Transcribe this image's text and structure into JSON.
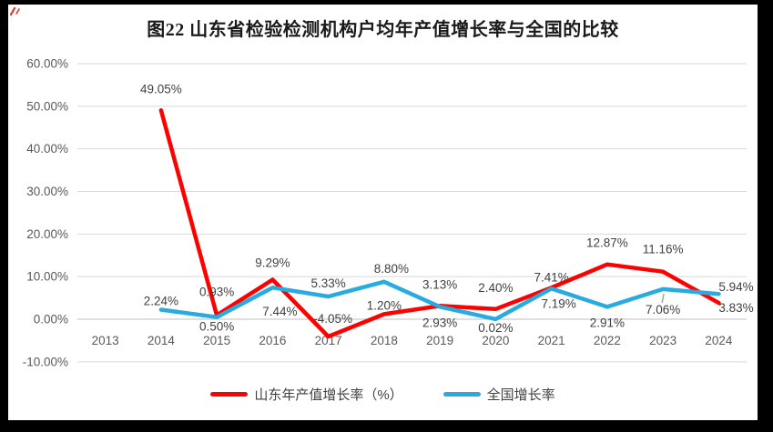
{
  "title": "图22 山东省检验检测机构户均年产值增长率与全国的比较",
  "legend": {
    "items": [
      {
        "label": "山东年产值增长率（%）",
        "color": "#FF0000"
      },
      {
        "label": "全国增长率",
        "color": "#29ABE2"
      }
    ]
  },
  "chart_data": {
    "type": "line",
    "title": "图22 山东省检验检测机构户均年产值增长率与全国的比较",
    "categories": [
      "2013",
      "2014",
      "2015",
      "2016",
      "2017",
      "2018",
      "2019",
      "2020",
      "2021",
      "2022",
      "2023",
      "2024"
    ],
    "series": [
      {
        "name": "山东年产值增长率（%）",
        "color": "#FF0000",
        "values": [
          null,
          49.05,
          0.93,
          9.29,
          -4.05,
          1.2,
          3.13,
          2.4,
          7.41,
          12.87,
          11.16,
          3.83
        ],
        "labels": [
          null,
          "49.05%",
          "0.93%",
          "9.29%",
          "-4.05%",
          "1.20%",
          "3.13%",
          "2.40%",
          "7.41%",
          "12.87%",
          "11.16%",
          "3.83%"
        ],
        "label_offsets": [
          null,
          [
            0,
            -19,
            "middle"
          ],
          [
            0,
            -21,
            "middle"
          ],
          [
            0,
            -14,
            "middle"
          ],
          [
            5,
            -15,
            "middle"
          ],
          [
            0,
            -5,
            "middle"
          ],
          [
            0,
            -19,
            "middle"
          ],
          [
            0,
            -19,
            "middle"
          ],
          [
            0,
            -7,
            "middle"
          ],
          [
            0,
            -19,
            "middle"
          ],
          [
            0,
            -20,
            "middle"
          ],
          [
            0,
            10,
            "start"
          ]
        ]
      },
      {
        "name": "全国增长率",
        "color": "#29ABE2",
        "values": [
          null,
          2.24,
          0.5,
          7.44,
          5.33,
          8.8,
          2.93,
          0.02,
          7.19,
          2.91,
          7.06,
          5.94
        ],
        "labels": [
          null,
          "2.24%",
          "0.50%",
          "7.44%",
          "5.33%",
          "8.80%",
          "2.93%",
          "0.02%",
          "7.19%",
          "2.91%",
          "7.06%",
          "5.94%"
        ],
        "label_offsets": [
          null,
          [
            0,
            -5,
            "middle"
          ],
          [
            0,
            15,
            "middle"
          ],
          [
            8,
            31,
            "middle"
          ],
          [
            0,
            -10,
            "middle"
          ],
          [
            8,
            -10,
            "middle"
          ],
          [
            0,
            22,
            "middle"
          ],
          [
            0,
            14,
            "middle"
          ],
          [
            8,
            21,
            "middle"
          ],
          [
            0,
            22,
            "middle"
          ],
          [
            0,
            27,
            "middle"
          ],
          [
            0,
            -3,
            "start"
          ]
        ],
        "leader_index": 10
      }
    ],
    "y_axis": {
      "min": -10,
      "max": 60,
      "step": 10,
      "ticks": [
        "60.00%",
        "50.00%",
        "40.00%",
        "30.00%",
        "20.00%",
        "10.00%",
        "0.00%",
        "-10.00%"
      ]
    },
    "grid": true,
    "legend_position": "bottom"
  },
  "colors": {
    "frame": "#000000",
    "background": "#FFFFFF",
    "gridline": "#D9D9D9",
    "zero_line": "#BFBFBF",
    "axis_text": "#595959",
    "data_label": "#404040",
    "leader_line": "#A6A6A6",
    "pen_mark": "#E8332A"
  }
}
